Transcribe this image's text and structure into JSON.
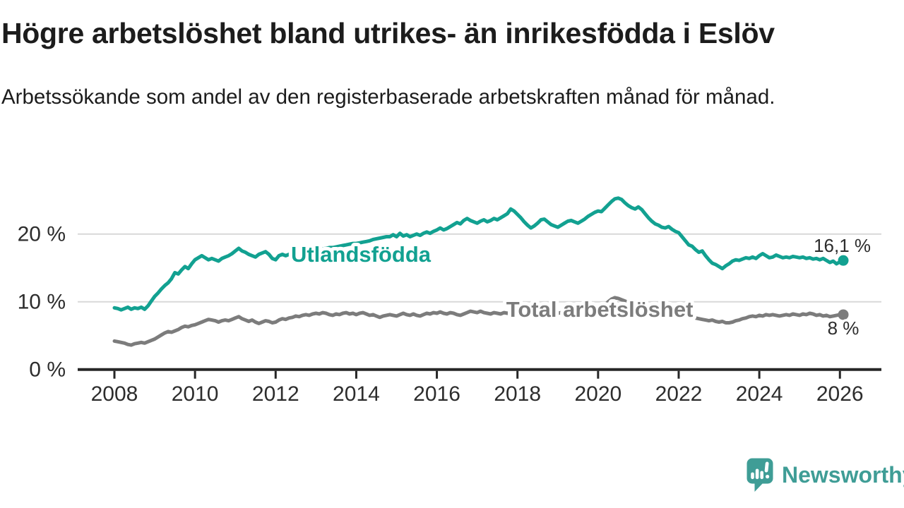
{
  "title": "Högre arbetslöshet bland utrikes- än inrikesfödda i Eslöv",
  "subtitle": "Arbetssökande som andel av den registerbaserade arbetskraften månad för månad.",
  "footer": {
    "brand": "Newsworthy",
    "logo_icon": "newsworthy-speech-bubble-bar-chart-icon"
  },
  "colors": {
    "background": "#ffffff",
    "text": "#1c1c1c",
    "axis": "#262626",
    "axis_labels": "#2d2d2d",
    "gridline": "#d8d8d8",
    "series_utlandsfodda": "#12a191",
    "series_total": "#7c7c7c",
    "brand_teal": "#3f9d96"
  },
  "chart_data": {
    "type": "line",
    "unit": "%",
    "x_start_year": 2008,
    "points_per_year": 12,
    "x_ticks": [
      2008,
      2010,
      2012,
      2014,
      2016,
      2018,
      2020,
      2022,
      2024,
      2026
    ],
    "y_ticks": [
      {
        "value": 0,
        "label": "0 %"
      },
      {
        "value": 10,
        "label": "10 %"
      },
      {
        "value": 20,
        "label": "20 %"
      }
    ],
    "ylim": [
      0,
      27
    ],
    "grid": "horizontal",
    "legend_position": "inline-labels",
    "series": [
      {
        "id": "utlandsfodda",
        "name": "Utlandsfödda",
        "color": "#12a191",
        "end_value": 16.1,
        "end_label": "16,1 %",
        "label_at": {
          "year": 2012.38,
          "value": 15.9
        },
        "values": [
          9.1,
          9.0,
          8.8,
          9.0,
          9.2,
          8.9,
          9.1,
          9.0,
          9.2,
          8.9,
          9.4,
          10.1,
          10.8,
          11.3,
          11.9,
          12.4,
          12.8,
          13.4,
          14.3,
          14.1,
          14.7,
          15.2,
          14.9,
          15.6,
          16.2,
          16.5,
          16.8,
          16.5,
          16.2,
          16.4,
          16.2,
          16.0,
          16.4,
          16.6,
          16.8,
          17.1,
          17.5,
          17.9,
          17.5,
          17.3,
          17.0,
          16.8,
          16.6,
          17.0,
          17.2,
          17.4,
          17.0,
          16.4,
          16.2,
          16.8,
          17.0,
          16.8,
          17.0,
          17.1,
          17.2,
          17.3,
          17.4,
          17.5,
          17.5,
          17.6,
          17.6,
          17.7,
          17.8,
          17.9,
          18.0,
          18.0,
          18.1,
          18.2,
          18.3,
          18.4,
          18.5,
          18.6,
          18.6,
          18.7,
          18.8,
          18.9,
          19.0,
          19.2,
          19.3,
          19.4,
          19.5,
          19.6,
          19.6,
          19.9,
          19.6,
          20.1,
          19.7,
          19.9,
          19.6,
          19.8,
          20.0,
          19.8,
          20.1,
          20.3,
          20.1,
          20.4,
          20.6,
          20.9,
          20.6,
          20.8,
          21.1,
          21.4,
          21.7,
          21.5,
          22.0,
          22.3,
          22.0,
          21.8,
          21.6,
          21.9,
          22.1,
          21.8,
          22.0,
          22.3,
          22.1,
          22.4,
          22.7,
          23.0,
          23.7,
          23.4,
          22.9,
          22.4,
          21.8,
          21.3,
          20.9,
          21.2,
          21.6,
          22.1,
          22.2,
          21.8,
          21.4,
          21.2,
          21.0,
          21.3,
          21.6,
          21.9,
          22.0,
          21.8,
          21.6,
          21.9,
          22.2,
          22.6,
          22.9,
          23.2,
          23.4,
          23.3,
          23.8,
          24.3,
          24.8,
          25.2,
          25.3,
          25.1,
          24.6,
          24.2,
          23.9,
          23.7,
          24.0,
          23.6,
          23.0,
          22.4,
          21.9,
          21.5,
          21.3,
          21.0,
          20.9,
          21.1,
          20.7,
          20.4,
          20.2,
          19.6,
          19.0,
          18.4,
          18.2,
          17.7,
          17.3,
          17.5,
          16.8,
          16.2,
          15.7,
          15.5,
          15.2,
          14.9,
          15.3,
          15.6,
          16.0,
          16.2,
          16.1,
          16.3,
          16.5,
          16.4,
          16.6,
          16.4,
          16.8,
          17.1,
          16.8,
          16.5,
          16.6,
          16.9,
          16.7,
          16.5,
          16.6,
          16.5,
          16.7,
          16.6,
          16.5,
          16.6,
          16.4,
          16.5,
          16.3,
          16.4,
          16.2,
          16.4,
          16.1,
          15.8,
          16.0,
          15.6,
          15.9,
          16.1
        ]
      },
      {
        "id": "total",
        "name": "Total arbetslöshet",
        "color": "#7c7c7c",
        "end_value": 8,
        "end_label": "8 %",
        "label_at": {
          "year": 2017.72,
          "value": 7.8
        },
        "values": [
          4.2,
          4.1,
          4.0,
          3.9,
          3.7,
          3.6,
          3.8,
          3.9,
          4.0,
          3.9,
          4.1,
          4.3,
          4.5,
          4.8,
          5.1,
          5.4,
          5.6,
          5.5,
          5.7,
          5.9,
          6.2,
          6.4,
          6.3,
          6.5,
          6.6,
          6.8,
          7.0,
          7.2,
          7.4,
          7.3,
          7.2,
          7.0,
          7.2,
          7.3,
          7.2,
          7.4,
          7.6,
          7.8,
          7.5,
          7.3,
          7.1,
          7.3,
          7.0,
          6.8,
          7.0,
          7.2,
          7.1,
          6.9,
          7.0,
          7.3,
          7.5,
          7.4,
          7.6,
          7.7,
          7.9,
          7.8,
          8.0,
          8.1,
          8.0,
          8.2,
          8.3,
          8.2,
          8.4,
          8.3,
          8.1,
          8.0,
          8.2,
          8.1,
          8.3,
          8.4,
          8.2,
          8.3,
          8.1,
          8.3,
          8.4,
          8.2,
          8.0,
          8.1,
          7.9,
          7.7,
          7.9,
          8.0,
          8.1,
          8.0,
          7.9,
          8.1,
          8.3,
          8.1,
          8.0,
          8.2,
          8.0,
          7.9,
          8.1,
          8.3,
          8.2,
          8.4,
          8.3,
          8.5,
          8.3,
          8.2,
          8.4,
          8.3,
          8.1,
          8.0,
          8.2,
          8.4,
          8.6,
          8.5,
          8.4,
          8.6,
          8.4,
          8.3,
          8.2,
          8.4,
          8.3,
          8.2,
          8.4,
          8.3,
          8.4,
          8.3,
          8.2,
          8.3,
          8.2,
          8.1,
          8.2,
          8.1,
          8.2,
          8.3,
          8.2,
          8.3,
          8.4,
          8.3,
          8.3,
          8.4,
          8.3,
          8.4,
          8.5,
          8.4,
          8.5,
          8.4,
          8.5,
          8.6,
          8.7,
          8.8,
          8.9,
          9.0,
          9.5,
          10.0,
          10.4,
          10.6,
          10.5,
          10.3,
          10.1,
          9.9,
          9.7,
          9.6,
          9.5,
          9.4,
          9.2,
          9.1,
          9.0,
          8.9,
          8.8,
          8.7,
          8.6,
          8.5,
          8.4,
          8.4,
          8.3,
          8.2,
          8.1,
          8.0,
          7.8,
          7.6,
          7.5,
          7.4,
          7.3,
          7.2,
          7.3,
          7.1,
          7.0,
          7.1,
          6.9,
          6.9,
          7.0,
          7.2,
          7.3,
          7.5,
          7.6,
          7.8,
          7.9,
          7.8,
          8.0,
          7.9,
          8.1,
          8.0,
          8.1,
          8.0,
          7.9,
          8.0,
          8.1,
          8.0,
          8.2,
          8.1,
          8.0,
          8.2,
          8.1,
          8.3,
          8.2,
          8.0,
          8.1,
          7.9,
          8.0,
          7.8,
          7.9,
          8.0,
          8.1,
          8.1
        ]
      }
    ]
  }
}
